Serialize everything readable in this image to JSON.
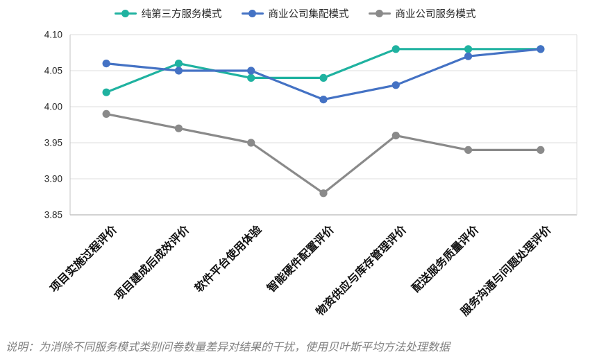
{
  "chart_data": {
    "type": "line",
    "title": "",
    "categories": [
      "项目实施过程评价",
      "项目建成后成效评价",
      "软件平台使用体验",
      "智能硬件配置评价",
      "物资供应与库存管理评价",
      "配送服务质量评价",
      "服务沟通与问题处理评价"
    ],
    "series": [
      {
        "name": "纯第三方服务模式",
        "color": "#1fb2a0",
        "values": [
          4.02,
          4.06,
          4.04,
          4.04,
          4.08,
          4.08,
          4.08
        ]
      },
      {
        "name": "商业公司集配模式",
        "color": "#4472c4",
        "values": [
          4.06,
          4.05,
          4.05,
          4.01,
          4.03,
          4.07,
          4.08
        ]
      },
      {
        "name": "商业公司服务模式",
        "color": "#8a8a8a",
        "values": [
          3.99,
          3.97,
          3.95,
          3.88,
          3.96,
          3.94,
          3.94
        ]
      }
    ],
    "xlabel": "",
    "ylabel": "",
    "ylim": [
      3.85,
      4.1
    ],
    "yticks": [
      "3.85",
      "3.90",
      "3.95",
      "4.00",
      "4.05",
      "4.10"
    ],
    "grid": true,
    "legend_position": "top",
    "colors": {
      "gridline": "#dcdcdc",
      "axis": "#c3c3c3",
      "tick_text": "#262626",
      "category_text": "#111111"
    }
  },
  "footnote": {
    "text": "说明：为消除不同服务模式类别问卷数量差异对结果的干扰，使用贝叶斯平均方法处理数据"
  }
}
